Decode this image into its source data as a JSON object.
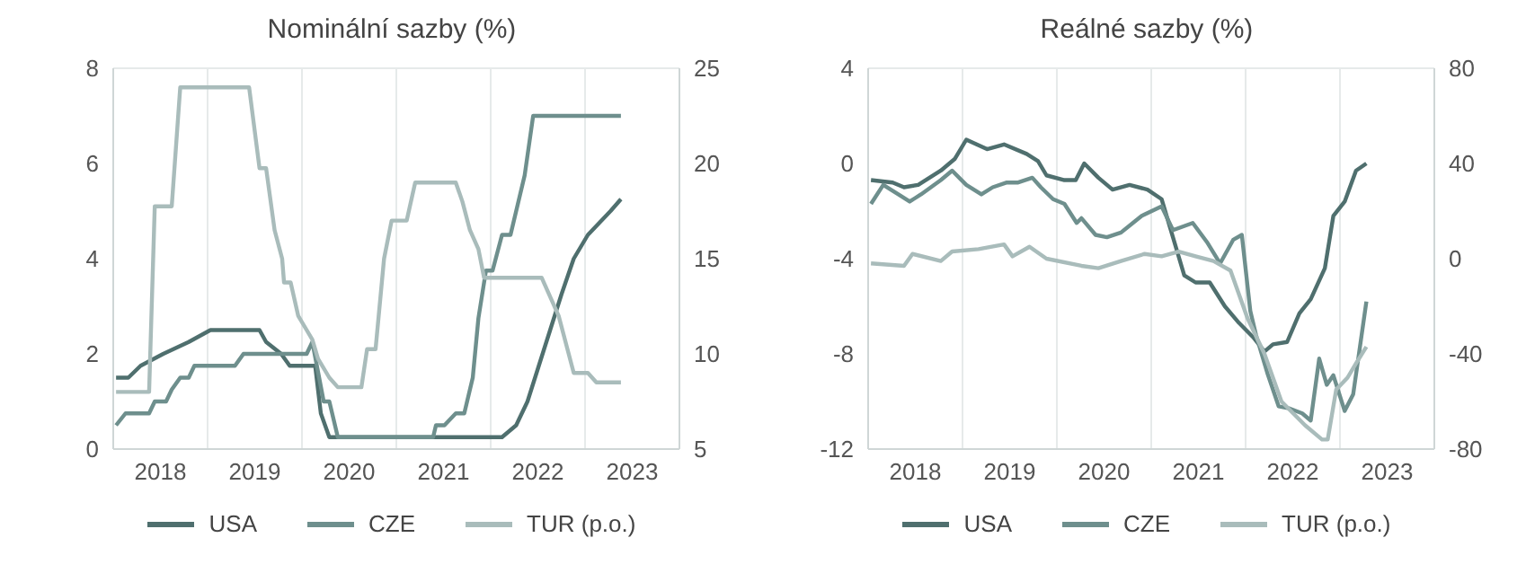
{
  "chart_data": [
    {
      "type": "line",
      "title": "Nominální sazby (%)",
      "xlim": [
        2018,
        2024
      ],
      "xticks": [
        {
          "value": 2018.5,
          "label": "2018"
        },
        {
          "value": 2019,
          "label": null
        },
        {
          "value": 2019.5,
          "label": "2019"
        },
        {
          "value": 2020,
          "label": null
        },
        {
          "value": 2020.5,
          "label": "2020"
        },
        {
          "value": 2021,
          "label": null
        },
        {
          "value": 2021.5,
          "label": "2021"
        },
        {
          "value": 2022,
          "label": null
        },
        {
          "value": 2022.5,
          "label": "2022"
        },
        {
          "value": 2023,
          "label": null
        },
        {
          "value": 2023.5,
          "label": "2023"
        }
      ],
      "ylim": [
        0,
        8
      ],
      "yticks": [
        0,
        2,
        4,
        6,
        8
      ],
      "y2lim": [
        5,
        25
      ],
      "y2ticks": [
        5,
        10,
        15,
        20,
        25
      ],
      "grid": true,
      "legend": "bottom",
      "line_style": "solid",
      "series": [
        {
          "name": "USA",
          "color": "#4f6f6e",
          "x": [
            2018.03,
            2018.16,
            2018.29,
            2018.53,
            2018.8,
            2019.03,
            2019.55,
            2019.62,
            2019.78,
            2019.87,
            2020.14,
            2020.2,
            2020.29,
            2022.12,
            2022.27,
            2022.39,
            2022.51,
            2022.63,
            2022.75,
            2022.88,
            2023.03,
            2023.15,
            2023.27,
            2023.38
          ],
          "values": [
            1.5,
            1.5,
            1.75,
            2.0,
            2.25,
            2.5,
            2.5,
            2.25,
            2.0,
            1.75,
            1.75,
            0.75,
            0.25,
            0.25,
            0.5,
            1.0,
            1.75,
            2.5,
            3.25,
            4.0,
            4.5,
            4.75,
            5.0,
            5.25
          ]
        },
        {
          "name": "CZE",
          "color": "#6e8f8d",
          "x": [
            2018.03,
            2018.13,
            2018.38,
            2018.44,
            2018.56,
            2018.62,
            2018.71,
            2018.8,
            2018.86,
            2019.29,
            2019.38,
            2020.05,
            2020.11,
            2020.23,
            2020.29,
            2020.38,
            2021.39,
            2021.42,
            2021.51,
            2021.63,
            2021.72,
            2021.81,
            2021.87,
            2021.95,
            2022.02,
            2022.12,
            2022.21,
            2022.27,
            2022.36,
            2022.45,
            2023.38
          ],
          "values": [
            0.5,
            0.75,
            0.75,
            1.0,
            1.0,
            1.25,
            1.5,
            1.5,
            1.75,
            1.75,
            2.0,
            2.0,
            2.25,
            1.0,
            1.0,
            0.25,
            0.25,
            0.5,
            0.5,
            0.75,
            0.75,
            1.5,
            2.75,
            3.75,
            3.75,
            4.5,
            4.5,
            5.0,
            5.75,
            7.0,
            7.0
          ]
        },
        {
          "name": "TUR (p.o.)",
          "color": "#a9bcbb",
          "axis": "y2",
          "x": [
            2018.03,
            2018.38,
            2018.44,
            2018.62,
            2018.71,
            2019.44,
            2019.55,
            2019.62,
            2019.71,
            2019.79,
            2019.81,
            2019.88,
            2019.96,
            2020.05,
            2020.11,
            2020.17,
            2020.29,
            2020.38,
            2020.63,
            2020.69,
            2020.78,
            2020.87,
            2020.95,
            2021.11,
            2021.2,
            2021.63,
            2021.7,
            2021.78,
            2021.87,
            2021.93,
            2022.54,
            2022.72,
            2022.88,
            2023.03,
            2023.12,
            2023.38
          ],
          "values": [
            8,
            8,
            17.75,
            17.75,
            24,
            24,
            19.75,
            19.75,
            16.5,
            15,
            13.75,
            13.75,
            12,
            11.25,
            10.75,
            9.75,
            8.75,
            8.25,
            8.25,
            10.25,
            10.25,
            15,
            17,
            17,
            19,
            19,
            18,
            16.5,
            15.5,
            14,
            14,
            12,
            9,
            9,
            8.5,
            8.5
          ]
        }
      ]
    },
    {
      "type": "line",
      "title": "Reálné sazby (%)",
      "xlim": [
        2018,
        2024
      ],
      "xticks": [
        {
          "value": 2018.5,
          "label": "2018"
        },
        {
          "value": 2019,
          "label": null
        },
        {
          "value": 2019.5,
          "label": "2019"
        },
        {
          "value": 2020,
          "label": null
        },
        {
          "value": 2020.5,
          "label": "2020"
        },
        {
          "value": 2021,
          "label": null
        },
        {
          "value": 2021.5,
          "label": "2021"
        },
        {
          "value": 2022,
          "label": null
        },
        {
          "value": 2022.5,
          "label": "2022"
        },
        {
          "value": 2023,
          "label": null
        },
        {
          "value": 2023.5,
          "label": "2023"
        }
      ],
      "ylim": [
        -12,
        4
      ],
      "yticks": [
        -12,
        -8,
        -4,
        0,
        4
      ],
      "y2lim": [
        -80,
        80
      ],
      "y2ticks": [
        -80,
        -40,
        0,
        40,
        80
      ],
      "grid": true,
      "legend": "bottom",
      "line_style": "solid",
      "series": [
        {
          "name": "USA",
          "color": "#4f6f6e",
          "x": [
            2018.03,
            2018.26,
            2018.38,
            2018.53,
            2018.77,
            2018.92,
            2019.04,
            2019.26,
            2019.44,
            2019.68,
            2019.8,
            2019.89,
            2020.08,
            2020.2,
            2020.29,
            2020.44,
            2020.59,
            2020.77,
            2020.96,
            2021.11,
            2021.23,
            2021.35,
            2021.47,
            2021.62,
            2021.78,
            2021.93,
            2022.08,
            2022.2,
            2022.29,
            2022.44,
            2022.57,
            2022.69,
            2022.84,
            2022.93,
            2023.05,
            2023.17,
            2023.28
          ],
          "values": [
            -0.7,
            -0.8,
            -1.0,
            -0.9,
            -0.3,
            0.2,
            1.0,
            0.6,
            0.8,
            0.4,
            0.1,
            -0.5,
            -0.7,
            -0.7,
            0.0,
            -0.6,
            -1.1,
            -0.9,
            -1.1,
            -1.5,
            -3.1,
            -4.7,
            -5.0,
            -5.0,
            -6.0,
            -6.7,
            -7.3,
            -7.9,
            -7.6,
            -7.5,
            -6.3,
            -5.7,
            -4.4,
            -2.2,
            -1.6,
            -0.3,
            0.0
          ]
        },
        {
          "name": "CZE",
          "color": "#6e8f8d",
          "x": [
            2018.03,
            2018.16,
            2018.32,
            2018.44,
            2018.56,
            2018.77,
            2018.89,
            2019.04,
            2019.2,
            2019.32,
            2019.47,
            2019.59,
            2019.74,
            2019.83,
            2019.96,
            2020.08,
            2020.21,
            2020.26,
            2020.41,
            2020.53,
            2020.68,
            2020.9,
            2021.11,
            2021.23,
            2021.44,
            2021.59,
            2021.73,
            2021.87,
            2021.96,
            2022.05,
            2022.11,
            2022.23,
            2022.35,
            2022.47,
            2022.6,
            2022.69,
            2022.78,
            2022.86,
            2022.93,
            2023.05,
            2023.14,
            2023.28
          ],
          "values": [
            -1.7,
            -0.9,
            -1.3,
            -1.6,
            -1.3,
            -0.7,
            -0.3,
            -0.9,
            -1.3,
            -1.0,
            -0.8,
            -0.8,
            -0.6,
            -1.0,
            -1.5,
            -1.7,
            -2.5,
            -2.3,
            -3.0,
            -3.1,
            -2.9,
            -2.2,
            -1.8,
            -2.8,
            -2.5,
            -3.3,
            -4.2,
            -3.2,
            -3.0,
            -6.2,
            -7.2,
            -8.8,
            -10.2,
            -10.3,
            -10.5,
            -10.8,
            -8.2,
            -9.3,
            -8.9,
            -10.4,
            -9.7,
            -5.8
          ]
        },
        {
          "name": "TUR (p.o.)",
          "color": "#a9bcbb",
          "axis": "y2",
          "x": [
            2018.03,
            2018.38,
            2018.47,
            2018.77,
            2018.89,
            2019.17,
            2019.44,
            2019.53,
            2019.71,
            2019.89,
            2020.26,
            2020.44,
            2020.68,
            2020.93,
            2021.11,
            2021.29,
            2021.47,
            2021.66,
            2021.84,
            2022.02,
            2022.2,
            2022.38,
            2022.63,
            2022.81,
            2022.87,
            2022.96,
            2023.08,
            2023.17,
            2023.28
          ],
          "values": [
            -2,
            -3,
            2,
            -1,
            3,
            4,
            6,
            1,
            5,
            0,
            -3,
            -4,
            -1,
            2,
            1,
            3,
            1,
            -1,
            -5,
            -25,
            -40,
            -60,
            -70,
            -76,
            -76,
            -55,
            -50,
            -44,
            -37
          ]
        }
      ]
    }
  ]
}
